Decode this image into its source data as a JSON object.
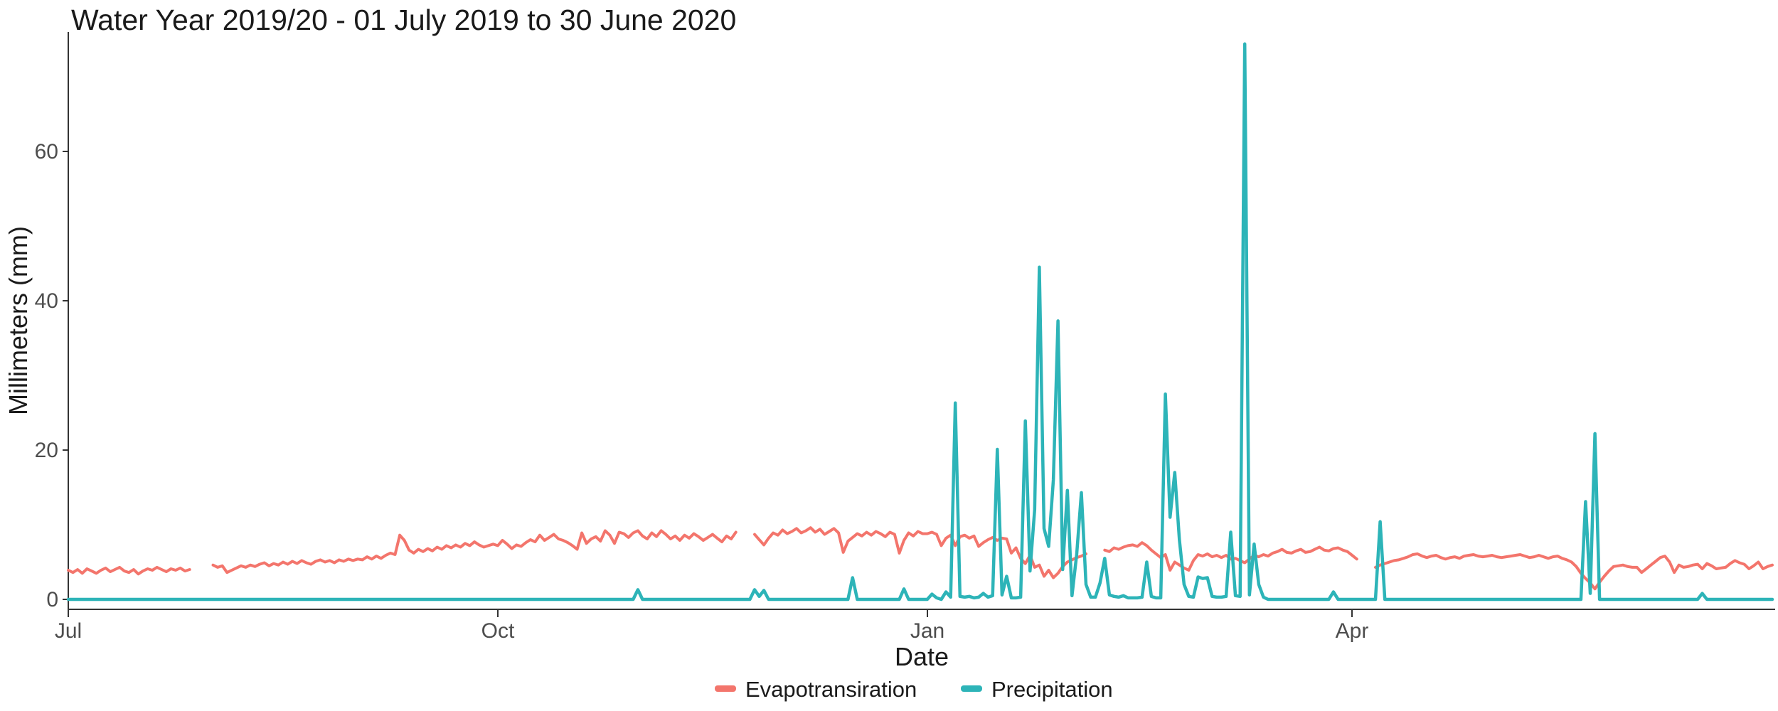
{
  "chart_data": {
    "type": "line",
    "title": "Water Year 2019/20 - 01 July 2019 to 30 June 2020",
    "xlabel": "Date",
    "ylabel": "Millimeters (mm)",
    "x_unit": "days since 2019-07-01",
    "n_points": 366,
    "x_range_days": [
      0,
      365
    ],
    "x_tick_positions": [
      0,
      92,
      184,
      275
    ],
    "x_tick_labels": [
      "Jul",
      "Oct",
      "Jan",
      "Apr"
    ],
    "y_ticks": [
      0,
      20,
      40,
      60
    ],
    "ylim": [
      0,
      76
    ],
    "grid": false,
    "legend_position": "bottom",
    "series": [
      {
        "name": "Evapotransiration",
        "color": "#F3756C",
        "values": [
          3.9,
          3.6,
          4.0,
          3.5,
          4.1,
          3.8,
          3.5,
          3.9,
          4.2,
          3.7,
          4.0,
          4.3,
          3.8,
          3.6,
          4.0,
          3.4,
          3.8,
          4.1,
          3.9,
          4.3,
          4.0,
          3.7,
          4.1,
          3.9,
          4.2,
          3.8,
          4.0,
          null,
          null,
          null,
          null,
          4.6,
          4.3,
          4.5,
          3.6,
          3.9,
          4.2,
          4.5,
          4.3,
          4.6,
          4.4,
          4.7,
          4.9,
          4.5,
          4.8,
          4.6,
          5.0,
          4.7,
          5.1,
          4.8,
          5.2,
          4.9,
          4.7,
          5.1,
          5.3,
          5.0,
          5.2,
          4.9,
          5.3,
          5.1,
          5.4,
          5.2,
          5.4,
          5.3,
          5.7,
          5.4,
          5.8,
          5.5,
          5.9,
          6.2,
          6.0,
          8.6,
          7.9,
          6.6,
          6.2,
          6.7,
          6.4,
          6.8,
          6.5,
          7.0,
          6.7,
          7.2,
          6.9,
          7.3,
          7.0,
          7.5,
          7.2,
          7.7,
          7.3,
          7.0,
          7.2,
          7.4,
          7.2,
          7.9,
          7.4,
          6.8,
          7.3,
          7.1,
          7.6,
          8.0,
          7.7,
          8.6,
          7.9,
          8.3,
          8.7,
          8.1,
          7.9,
          7.6,
          7.2,
          6.7,
          8.9,
          7.5,
          8.1,
          8.4,
          7.8,
          9.2,
          8.6,
          7.5,
          9.0,
          8.8,
          8.3,
          8.9,
          9.2,
          8.5,
          8.1,
          8.9,
          8.4,
          9.2,
          8.7,
          8.1,
          8.5,
          7.9,
          8.6,
          8.2,
          8.8,
          8.4,
          7.9,
          8.3,
          8.7,
          8.2,
          7.7,
          8.5,
          8.1,
          9.0,
          null,
          null,
          null,
          8.7,
          8.0,
          7.3,
          8.2,
          8.9,
          8.6,
          9.3,
          8.8,
          9.1,
          9.5,
          8.9,
          9.2,
          9.6,
          9.0,
          9.4,
          8.7,
          9.1,
          9.5,
          8.9,
          6.3,
          7.8,
          8.3,
          8.8,
          8.5,
          9.0,
          8.6,
          9.1,
          8.8,
          8.4,
          9.0,
          8.7,
          6.2,
          7.9,
          8.9,
          8.5,
          9.1,
          8.8,
          8.8,
          9.0,
          8.7,
          7.2,
          8.2,
          8.6,
          7.2,
          8.4,
          8.6,
          8.2,
          8.5,
          7.1,
          7.6,
          8.0,
          8.3,
          7.9,
          8.2,
          8.1,
          6.2,
          6.9,
          5.5,
          4.8,
          5.9,
          4.3,
          4.6,
          3.1,
          3.9,
          2.9,
          3.5,
          4.4,
          5.0,
          5.3,
          5.6,
          5.8,
          6.1,
          null,
          null,
          null,
          6.6,
          6.4,
          6.9,
          6.7,
          7.0,
          7.2,
          7.3,
          7.1,
          7.6,
          7.2,
          6.6,
          6.1,
          5.6,
          6.0,
          3.9,
          5.0,
          4.6,
          4.2,
          3.9,
          5.2,
          6.0,
          5.8,
          6.1,
          5.7,
          5.9,
          5.6,
          5.9,
          5.4,
          5.5,
          5.2,
          4.9,
          5.4,
          5.9,
          5.7,
          6.0,
          5.8,
          6.2,
          6.4,
          6.7,
          6.3,
          6.2,
          6.5,
          6.7,
          6.3,
          6.4,
          6.7,
          7.0,
          6.6,
          6.5,
          6.8,
          6.9,
          6.6,
          6.4,
          5.9,
          5.4,
          null,
          null,
          null,
          4.3,
          4.6,
          4.8,
          5.0,
          5.2,
          5.3,
          5.5,
          5.7,
          6.0,
          6.1,
          5.8,
          5.6,
          5.8,
          5.9,
          5.6,
          5.4,
          5.6,
          5.7,
          5.5,
          5.8,
          5.9,
          6.0,
          5.8,
          5.7,
          5.8,
          5.9,
          5.7,
          5.6,
          5.7,
          5.8,
          5.9,
          6.0,
          5.8,
          5.6,
          5.7,
          5.9,
          5.7,
          5.5,
          5.7,
          5.8,
          5.5,
          5.3,
          5.0,
          4.4,
          3.5,
          2.8,
          2.2,
          1.4,
          2.3,
          3.1,
          3.8,
          4.4,
          4.5,
          4.6,
          4.4,
          4.3,
          4.3,
          3.6,
          4.1,
          4.6,
          5.1,
          5.6,
          5.8,
          5.0,
          3.6,
          4.6,
          4.3,
          4.4,
          4.6,
          4.7,
          4.1,
          4.8,
          4.5,
          4.1,
          4.2,
          4.3,
          4.8,
          5.2,
          4.9,
          4.7,
          4.1,
          4.5,
          5.0,
          4.1,
          4.4,
          4.6
        ]
      },
      {
        "name": "Precipitation",
        "color": "#2DB4B8",
        "values": [
          0,
          0,
          0,
          0,
          0,
          0,
          0,
          0,
          0,
          0,
          0,
          0,
          0,
          0,
          0,
          0,
          0,
          0,
          0,
          0,
          0,
          0,
          0,
          0,
          0,
          0,
          0,
          0,
          0,
          0,
          0,
          0,
          0,
          0,
          0,
          0,
          0,
          0,
          0,
          0,
          0,
          0,
          0,
          0,
          0,
          0,
          0,
          0,
          0,
          0,
          0,
          0,
          0,
          0,
          0,
          0,
          0,
          0,
          0,
          0,
          0,
          0,
          0,
          0,
          0,
          0,
          0,
          0,
          0,
          0,
          0,
          0,
          0,
          0,
          0,
          0,
          0,
          0,
          0,
          0,
          0,
          0,
          0,
          0,
          0,
          0,
          0,
          0,
          0,
          0,
          0,
          0,
          0,
          0,
          0,
          0,
          0,
          0,
          0,
          0,
          0,
          0,
          0,
          0,
          0,
          0,
          0,
          0,
          0,
          0,
          0,
          0,
          0,
          0,
          0,
          0,
          0,
          0,
          0,
          0,
          0,
          0,
          1.3,
          0,
          0,
          0,
          0,
          0,
          0,
          0,
          0,
          0,
          0,
          0,
          0,
          0,
          0,
          0,
          0,
          0,
          0,
          0,
          0,
          0,
          0,
          0,
          0,
          1.3,
          0.4,
          1.2,
          0,
          0,
          0,
          0,
          0,
          0,
          0,
          0,
          0,
          0,
          0,
          0,
          0,
          0,
          0,
          0,
          0,
          0,
          2.9,
          0,
          0,
          0,
          0,
          0,
          0,
          0,
          0,
          0,
          0,
          1.4,
          0,
          0,
          0,
          0,
          0,
          0.7,
          0.2,
          0,
          1.0,
          0.3,
          26.3,
          0.4,
          0.3,
          0.4,
          0.2,
          0.3,
          0.8,
          0.3,
          0.5,
          20.1,
          0.6,
          3.1,
          0.2,
          0.2,
          0.3,
          23.9,
          3.8,
          12.0,
          44.5,
          9.5,
          7.1,
          16.0,
          37.3,
          4.0,
          14.6,
          0.5,
          6.0,
          14.3,
          2.0,
          0.3,
          0.3,
          2.2,
          5.5,
          0.6,
          0.4,
          0.3,
          0.5,
          0.2,
          0.2,
          0.2,
          0.3,
          5.0,
          0.4,
          0.2,
          0.2,
          27.5,
          11.0,
          17.0,
          8.0,
          2.0,
          0.4,
          0.3,
          3.0,
          2.8,
          2.9,
          0.4,
          0.3,
          0.3,
          0.4,
          9.0,
          0.5,
          0.4,
          74.4,
          0.6,
          7.4,
          2.0,
          0.3,
          0,
          0,
          0,
          0,
          0,
          0,
          0,
          0,
          0,
          0,
          0,
          0,
          0,
          0,
          1.0,
          0,
          0,
          0,
          0,
          0,
          0,
          0,
          0,
          0,
          10.4,
          0,
          0,
          0,
          0,
          0,
          0,
          0,
          0,
          0,
          0,
          0,
          0,
          0,
          0,
          0,
          0,
          0,
          0,
          0,
          0,
          0,
          0,
          0,
          0,
          0,
          0,
          0,
          0,
          0,
          0,
          0,
          0,
          0,
          0,
          0,
          0,
          0,
          0,
          0,
          0,
          0,
          0,
          0,
          13.1,
          0.8,
          22.2,
          0,
          0,
          0,
          0,
          0,
          0,
          0,
          0,
          0,
          0,
          0,
          0,
          0,
          0,
          0,
          0,
          0,
          0,
          0,
          0,
          0,
          0,
          0.8,
          0,
          0,
          0,
          0,
          0,
          0,
          0,
          0,
          0,
          0,
          0,
          0,
          0,
          0,
          0
        ]
      }
    ]
  }
}
